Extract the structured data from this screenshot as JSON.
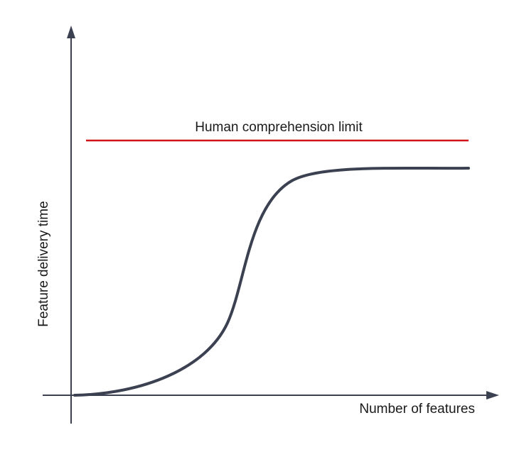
{
  "axes": {
    "x_label": "Number of features",
    "y_label": "Feature delivery time"
  },
  "annotations": [
    {
      "label": "Human comprehension limit"
    }
  ]
}
